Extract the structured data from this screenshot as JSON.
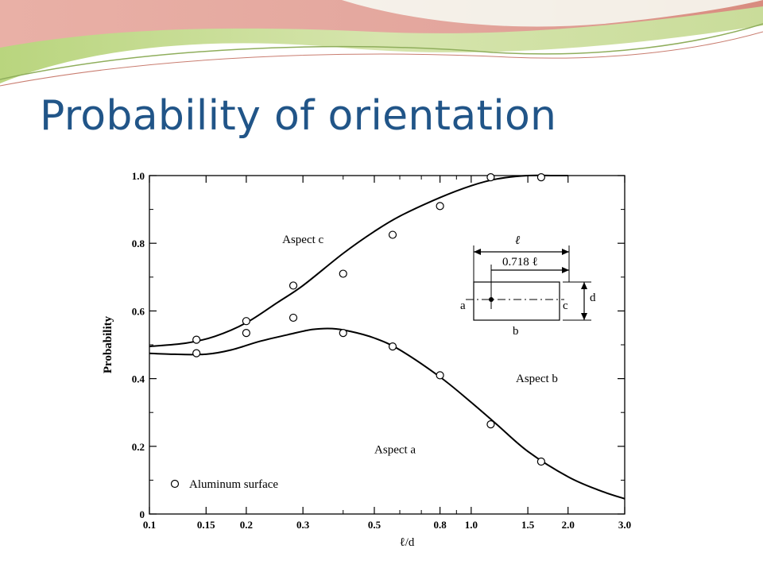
{
  "slide": {
    "title": "Probability of orientation"
  },
  "colors": {
    "title": "#215588",
    "curve": "#000000",
    "banner_green": "#c9dc9a",
    "banner_pink": "#e4a29a"
  },
  "chart_data": {
    "type": "scatter",
    "title": "",
    "xlabel": "ℓ/d",
    "ylabel": "Probability",
    "xscale": "log",
    "xlim": [
      0.1,
      3.0
    ],
    "ylim": [
      0,
      1.0
    ],
    "xticks": [
      0.1,
      0.15,
      0.2,
      0.3,
      0.5,
      0.8,
      1.0,
      1.5,
      2.0,
      3.0
    ],
    "xtick_labels": [
      "0.1",
      "0.15",
      "0.2",
      "0.3",
      "0.5",
      "0.8",
      "1.0",
      "1.5",
      "2.0",
      "3.0"
    ],
    "yticks": [
      0,
      0.2,
      0.4,
      0.6,
      0.8,
      1.0
    ],
    "ytick_labels": [
      "0",
      "0.2",
      "0.4",
      "0.6",
      "0.8",
      "1.0"
    ],
    "grid": false,
    "legend": "bottom-left",
    "series": [
      {
        "name": "Aluminum surface",
        "marker": "open-circle",
        "x": [
          0.14,
          0.2,
          0.28,
          0.4,
          0.57,
          0.8,
          1.15,
          1.65,
          0.14,
          0.2,
          0.28,
          0.4,
          0.57,
          0.8,
          1.15,
          1.65
        ],
        "y": [
          0.515,
          0.57,
          0.675,
          0.71,
          0.825,
          0.91,
          0.995,
          0.995,
          0.475,
          0.535,
          0.58,
          0.535,
          0.495,
          0.41,
          0.265,
          0.155
        ]
      }
    ],
    "curves": [
      {
        "label": "upper",
        "x": [
          0.1,
          0.13,
          0.16,
          0.2,
          0.25,
          0.3,
          0.4,
          0.5,
          0.6,
          0.8,
          1.0,
          1.2,
          1.5,
          1.8,
          2.0
        ],
        "y": [
          0.495,
          0.505,
          0.525,
          0.565,
          0.625,
          0.675,
          0.77,
          0.835,
          0.88,
          0.935,
          0.97,
          0.99,
          1.0,
          1.0,
          1.0
        ]
      },
      {
        "label": "lower",
        "x": [
          0.1,
          0.12,
          0.15,
          0.18,
          0.22,
          0.27,
          0.32,
          0.37,
          0.42,
          0.5,
          0.6,
          0.8,
          1.0,
          1.2,
          1.5,
          2.0,
          2.5,
          3.0
        ],
        "y": [
          0.475,
          0.472,
          0.472,
          0.485,
          0.51,
          0.53,
          0.545,
          0.548,
          0.54,
          0.52,
          0.485,
          0.405,
          0.33,
          0.265,
          0.185,
          0.11,
          0.07,
          0.045
        ]
      }
    ],
    "annotations": [
      {
        "text": "Aspect c",
        "x": 0.3,
        "y": 0.8
      },
      {
        "text": "Aspect b",
        "x": 1.6,
        "y": 0.39
      },
      {
        "text": "Aspect a",
        "x": 0.58,
        "y": 0.18
      }
    ],
    "inset": {
      "length_label": "ℓ",
      "offset_label": "0.718 ℓ",
      "depth_label": "d",
      "face_a": "a",
      "face_b": "b",
      "face_c": "c"
    }
  }
}
